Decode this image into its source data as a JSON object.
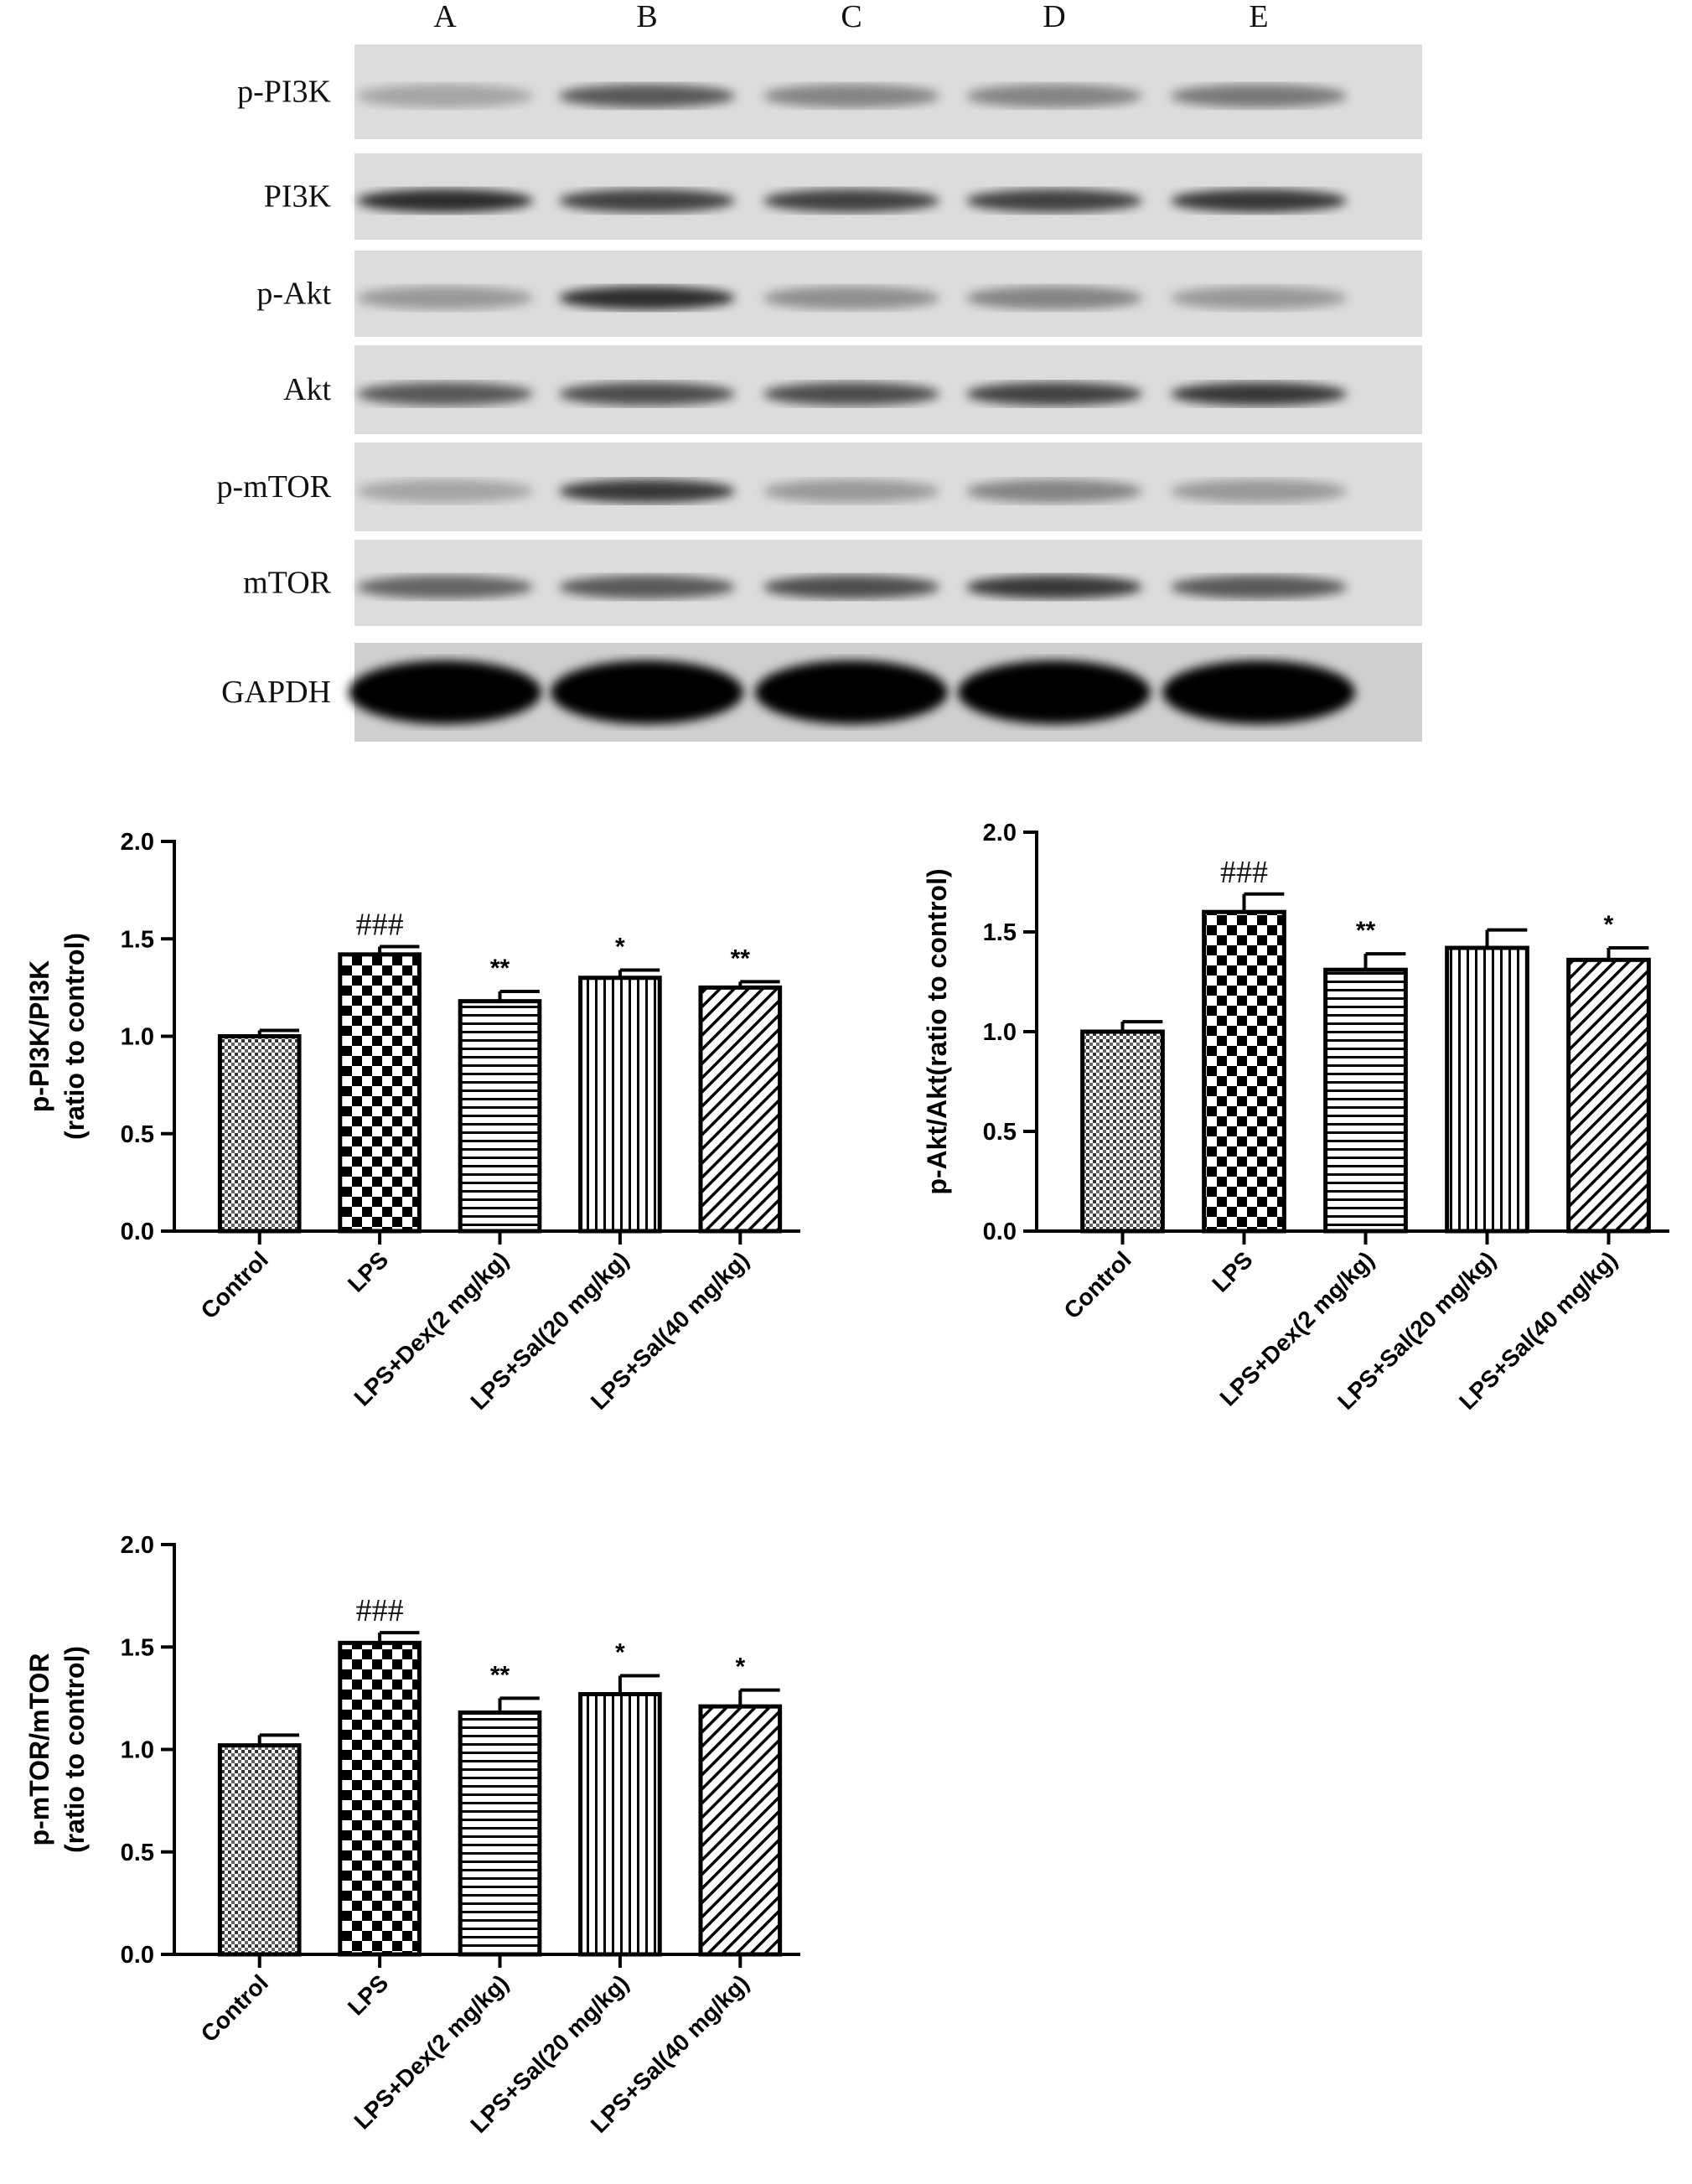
{
  "blot": {
    "lanes": [
      "A",
      "B",
      "C",
      "D",
      "E"
    ],
    "rows": [
      "p-PI3K",
      "PI3K",
      "p-Akt",
      "Akt",
      "p-mTOR",
      "mTOR",
      "GAPDH"
    ]
  },
  "chart_data": [
    {
      "type": "bar",
      "ylabel": [
        "p-PI3K/PI3K",
        "(ratio to control)"
      ],
      "categories": [
        "Control",
        "LPS",
        "LPS+Dex(2 mg/kg)",
        "LPS+Sal(20 mg/kg)",
        "LPS+Sal(40 mg/kg)"
      ],
      "values": [
        1.0,
        1.42,
        1.18,
        1.3,
        1.25
      ],
      "errors": [
        0.03,
        0.04,
        0.05,
        0.04,
        0.03
      ],
      "annotations": [
        null,
        "###",
        "**",
        "*",
        "**"
      ],
      "ylim": [
        0,
        2
      ],
      "yticks": [
        {
          "value": 0,
          "label": "0.0"
        },
        {
          "value": 0.5,
          "label": "0.5"
        },
        {
          "value": 1,
          "label": "1.0"
        },
        {
          "value": 1.5,
          "label": "1.5"
        },
        {
          "value": 2,
          "label": "2.0"
        }
      ]
    },
    {
      "type": "bar",
      "ylabel": [
        "p-Akt/Akt(ratio to control)"
      ],
      "categories": [
        "Control",
        "LPS",
        "LPS+Dex(2 mg/kg)",
        "LPS+Sal(20 mg/kg)",
        "LPS+Sal(40 mg/kg)"
      ],
      "values": [
        1.0,
        1.6,
        1.31,
        1.42,
        1.36
      ],
      "errors": [
        0.05,
        0.09,
        0.08,
        0.09,
        0.06
      ],
      "annotations": [
        null,
        "###",
        "**",
        null,
        "*"
      ],
      "ylim": [
        0,
        2
      ],
      "yticks": [
        {
          "value": 0,
          "label": "0.0"
        },
        {
          "value": 0.5,
          "label": "0.5"
        },
        {
          "value": 1,
          "label": "1.0"
        },
        {
          "value": 1.5,
          "label": "1.5"
        },
        {
          "value": 2,
          "label": "2.0"
        }
      ]
    },
    {
      "type": "bar",
      "ylabel": [
        "p-mTOR/mTOR",
        "(ratio to control)"
      ],
      "categories": [
        "Control",
        "LPS",
        "LPS+Dex(2 mg/kg)",
        "LPS+Sal(20 mg/kg)",
        "LPS+Sal(40 mg/kg)"
      ],
      "values": [
        1.02,
        1.52,
        1.18,
        1.27,
        1.21
      ],
      "errors": [
        0.05,
        0.05,
        0.07,
        0.09,
        0.08
      ],
      "annotations": [
        null,
        "###",
        "**",
        "*",
        "*"
      ],
      "ylim": [
        0,
        2
      ],
      "yticks": [
        {
          "value": 0,
          "label": "0.0"
        },
        {
          "value": 0.5,
          "label": "0.5"
        },
        {
          "value": 1,
          "label": "1.0"
        },
        {
          "value": 1.5,
          "label": "1.5"
        },
        {
          "value": 2,
          "label": "2.0"
        }
      ]
    }
  ]
}
